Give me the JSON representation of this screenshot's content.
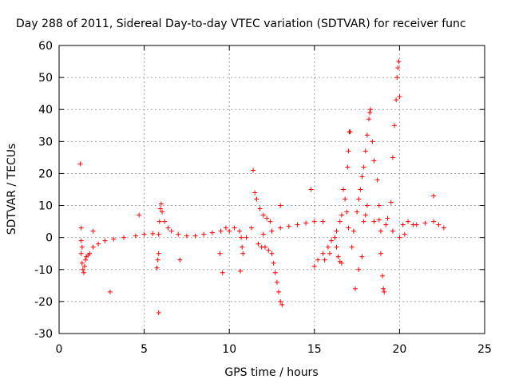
{
  "chart_data": {
    "type": "scatter",
    "title": "Day 288 of 2011, Sidereal Day-to-day VTEC variation (SDTVAR) for receiver func",
    "xlabel": "GPS time / hours",
    "ylabel": "SDTVAR / TECUs",
    "xlim": [
      0,
      25
    ],
    "ylim": [
      -30,
      60
    ],
    "xticks": [
      "0",
      "5",
      "10",
      "15",
      "20",
      "25"
    ],
    "yticks": [
      "-30",
      "-20",
      "-10",
      "0",
      "10",
      "20",
      "30",
      "40",
      "50",
      "60"
    ],
    "grid": true,
    "marker": "+",
    "color": "#ff0000",
    "series": [
      {
        "points": [
          [
            1.3,
            -5
          ],
          [
            1.35,
            -8
          ],
          [
            1.4,
            -10
          ],
          [
            1.45,
            -11
          ],
          [
            1.5,
            -9
          ],
          [
            1.55,
            -7
          ],
          [
            1.6,
            -6
          ],
          [
            1.7,
            -5.5
          ],
          [
            1.8,
            -5
          ],
          [
            2.0,
            -3
          ],
          [
            2.3,
            -2
          ],
          [
            2.7,
            -1
          ],
          [
            3.2,
            -0.5
          ],
          [
            3.8,
            0
          ],
          [
            4.5,
            0.5
          ],
          [
            5.0,
            1
          ],
          [
            5.5,
            1.2
          ],
          [
            5.85,
            1
          ],
          [
            5.9,
            5
          ],
          [
            5.95,
            9
          ],
          [
            6.0,
            10.5
          ],
          [
            6.05,
            8
          ],
          [
            6.2,
            5
          ],
          [
            6.4,
            3
          ],
          [
            6.6,
            2
          ],
          [
            7.0,
            1
          ],
          [
            7.5,
            0.5
          ],
          [
            8.0,
            0.5
          ],
          [
            8.5,
            1
          ],
          [
            9.0,
            1.5
          ],
          [
            9.5,
            2
          ],
          [
            9.8,
            3
          ],
          [
            10.0,
            2
          ],
          [
            10.3,
            3
          ],
          [
            10.6,
            2
          ],
          [
            10.7,
            0
          ],
          [
            10.75,
            -3
          ],
          [
            10.8,
            -5
          ],
          [
            11.0,
            0
          ],
          [
            11.3,
            3
          ],
          [
            11.5,
            14
          ],
          [
            11.6,
            12
          ],
          [
            11.8,
            9
          ],
          [
            12.0,
            7
          ],
          [
            12.2,
            6
          ],
          [
            12.4,
            5
          ],
          [
            11.7,
            -2
          ],
          [
            11.9,
            -3
          ],
          [
            12.1,
            -3
          ],
          [
            12.3,
            -4
          ],
          [
            12.5,
            -5
          ],
          [
            12.6,
            -8
          ],
          [
            12.7,
            -11
          ],
          [
            12.8,
            -14
          ],
          [
            12.9,
            -17
          ],
          [
            13.0,
            -20
          ],
          [
            13.1,
            -21
          ],
          [
            12.0,
            1
          ],
          [
            12.5,
            2
          ],
          [
            13.0,
            3
          ],
          [
            13.5,
            3.5
          ],
          [
            14.0,
            4
          ],
          [
            14.5,
            4.5
          ],
          [
            15.0,
            5
          ],
          [
            15.5,
            5
          ],
          [
            15.0,
            -9
          ],
          [
            15.2,
            -7
          ],
          [
            15.5,
            -5
          ],
          [
            15.8,
            -3
          ],
          [
            16.0,
            -1
          ],
          [
            16.2,
            0
          ],
          [
            15.6,
            -7
          ],
          [
            15.9,
            -5
          ],
          [
            16.3,
            -3
          ],
          [
            16.6,
            7
          ],
          [
            16.8,
            12
          ],
          [
            16.95,
            22
          ],
          [
            17.0,
            27
          ],
          [
            17.05,
            33
          ],
          [
            17.1,
            33
          ],
          [
            16.3,
            2
          ],
          [
            16.5,
            5
          ],
          [
            16.7,
            15
          ],
          [
            16.9,
            8
          ],
          [
            16.5,
            -7.5
          ],
          [
            16.6,
            -8
          ],
          [
            16.4,
            -6
          ],
          [
            17.2,
            -3
          ],
          [
            17.0,
            3
          ],
          [
            17.3,
            2
          ],
          [
            17.5,
            8
          ],
          [
            17.6,
            12
          ],
          [
            17.7,
            15
          ],
          [
            17.8,
            19
          ],
          [
            17.9,
            22
          ],
          [
            18.0,
            27
          ],
          [
            18.1,
            32
          ],
          [
            18.2,
            37
          ],
          [
            18.25,
            39
          ],
          [
            18.3,
            40
          ],
          [
            18.4,
            30
          ],
          [
            18.5,
            24
          ],
          [
            18.7,
            18
          ],
          [
            18.8,
            10
          ],
          [
            18.9,
            -5
          ],
          [
            19.0,
            -12
          ],
          [
            19.05,
            -16
          ],
          [
            19.1,
            -17
          ],
          [
            17.8,
            -6
          ],
          [
            17.6,
            -10
          ],
          [
            17.4,
            -16
          ],
          [
            17.9,
            5
          ],
          [
            18.0,
            7
          ],
          [
            18.1,
            10
          ],
          [
            18.5,
            5
          ],
          [
            18.9,
            2
          ],
          [
            19.3,
            6
          ],
          [
            19.5,
            11
          ],
          [
            19.6,
            25
          ],
          [
            19.7,
            35
          ],
          [
            19.8,
            43
          ],
          [
            19.85,
            50
          ],
          [
            19.9,
            53
          ],
          [
            19.95,
            55
          ],
          [
            20.0,
            44
          ],
          [
            20.2,
            4
          ],
          [
            20.5,
            5
          ],
          [
            20.8,
            4
          ],
          [
            21.0,
            4
          ],
          [
            21.5,
            4.5
          ],
          [
            22.0,
            5
          ],
          [
            22.3,
            4
          ],
          [
            22.6,
            3
          ],
          [
            20.0,
            0
          ],
          [
            20.3,
            1
          ],
          [
            19.6,
            2
          ],
          [
            19.2,
            4
          ],
          [
            18.8,
            5.5
          ],
          [
            1.25,
            23
          ],
          [
            1.3,
            3
          ],
          [
            1.3,
            -1
          ],
          [
            1.35,
            -3
          ],
          [
            3.0,
            -17
          ],
          [
            4.7,
            7
          ],
          [
            5.85,
            -23.5
          ],
          [
            5.8,
            -7
          ],
          [
            5.75,
            -9.5
          ],
          [
            5.85,
            -5
          ],
          [
            7.1,
            -7
          ],
          [
            9.6,
            -11
          ],
          [
            9.45,
            -5
          ],
          [
            10.65,
            -10.5
          ],
          [
            11.4,
            21
          ],
          [
            13.0,
            10
          ],
          [
            14.8,
            15
          ],
          [
            22.0,
            13
          ],
          [
            2.0,
            2
          ]
        ]
      }
    ]
  }
}
